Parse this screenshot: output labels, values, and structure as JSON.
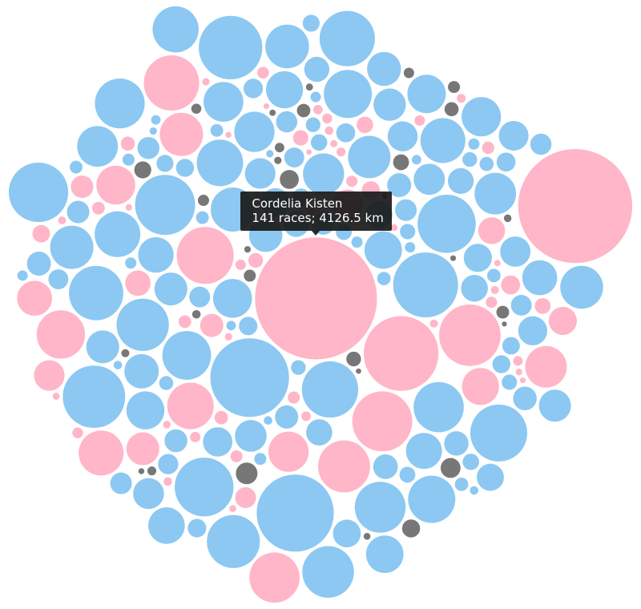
{
  "chart_data": {
    "type": "bubble",
    "series": [
      {
        "color": "#8cc8f2",
        "values": [
          420,
          95,
          1718,
          60,
          310,
          180,
          25,
          540,
          140,
          880,
          70,
          230,
          35,
          660,
          120,
          390,
          50,
          1170,
          210,
          85,
          470,
          30,
          300,
          150,
          760,
          45,
          260,
          110,
          600,
          20,
          350,
          190,
          1000,
          65,
          280,
          130,
          500,
          40,
          940,
          90,
          240,
          160,
          700,
          55,
          330,
          15,
          450,
          200,
          1650,
          75,
          270,
          125,
          580,
          35,
          400,
          100,
          820,
          60,
          220,
          170,
          520,
          25,
          360,
          145,
          960,
          80,
          250,
          115,
          640,
          45,
          300,
          185,
          440,
          20,
          1080,
          70,
          290,
          135,
          560,
          50,
          380,
          105,
          720,
          30,
          215,
          165,
          480,
          60,
          900,
          90,
          255,
          120,
          620,
          40,
          340,
          175,
          410,
          15,
          780,
          85,
          235,
          140,
          530,
          55,
          1120,
          65,
          320,
          110,
          460,
          25,
          690,
          95,
          265,
          155,
          370,
          35,
          850,
          75,
          205,
          130,
          590,
          45,
          430,
          100,
          740,
          50,
          285,
          160,
          510,
          20,
          980,
          80,
          245,
          125,
          390,
          30
        ]
      },
      {
        "color": "#ffb6c8",
        "values": [
          4126.5,
          60,
          30,
          900,
          15,
          150,
          40,
          1550,
          20,
          280,
          10,
          1000,
          45,
          25,
          600,
          12,
          90,
          35,
          450,
          18,
          750,
          50,
          22,
          180,
          8,
          1050,
          30,
          65,
          14,
          380,
          40,
          20,
          120,
          10,
          520,
          28,
          75,
          16,
          300,
          12,
          650,
          35,
          24,
          200,
          9,
          420,
          45,
          18,
          100,
          11,
          560,
          30,
          55,
          13,
          260,
          20,
          850,
          38,
          15,
          140,
          3611,
          340,
          26,
          70,
          12,
          480,
          42,
          17,
          220,
          9,
          700,
          32,
          22,
          85,
          14
        ]
      },
      {
        "color": "#777777",
        "values": [
          40,
          12,
          60,
          20,
          8,
          100,
          15,
          35,
          10,
          70,
          25,
          9,
          130,
          18,
          50,
          11,
          28,
          80,
          14,
          45,
          7,
          110,
          22,
          16,
          55,
          10,
          30,
          90,
          13,
          40
        ]
      }
    ],
    "tooltip": {
      "title": "Cordelia Kisten",
      "text": "141 races; 4126.5 km"
    }
  }
}
